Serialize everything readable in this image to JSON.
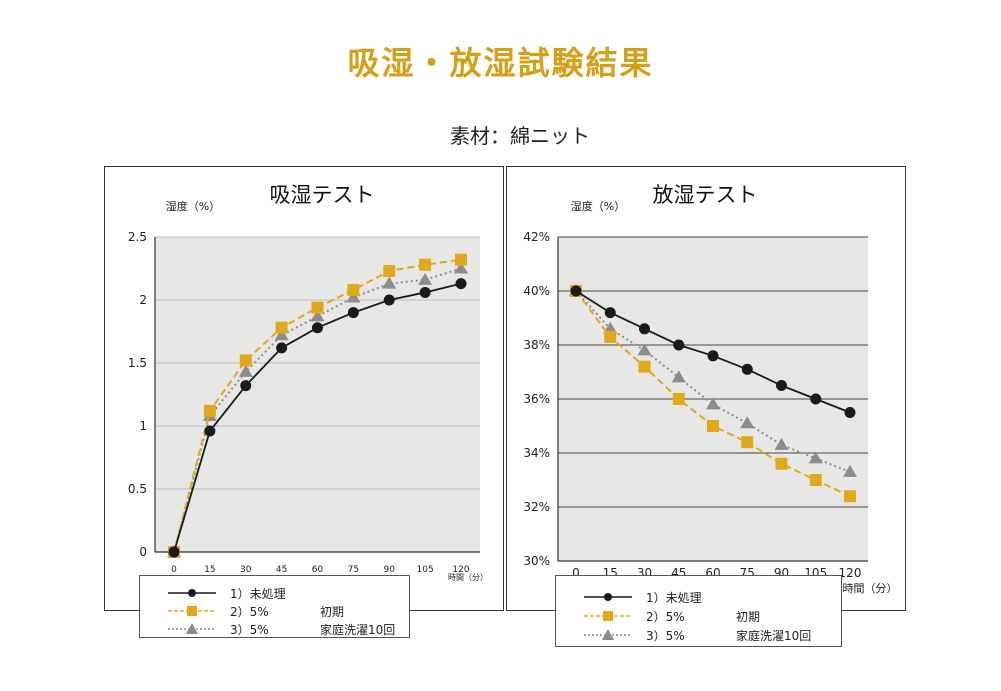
{
  "page_title": "吸湿・放湿試験結果",
  "material_label": "素材：綿ニット",
  "legend": {
    "items": [
      {
        "label": "1）未処理",
        "note": ""
      },
      {
        "label": "2）5%",
        "note": "初期"
      },
      {
        "label": "3）5%",
        "note": "家庭洗濯10回"
      }
    ]
  },
  "colors": {
    "untreated": "#1a1a1a",
    "initial": "#e0a91c",
    "washed": "#8c8c8c",
    "plot_bg": "#e7e8e6",
    "title": "#d4a017"
  },
  "chart_data": [
    {
      "type": "line",
      "title": "吸湿テスト",
      "ylabel": "湿度（%）",
      "xlabel": "時間（分）",
      "x": [
        0,
        15,
        30,
        45,
        60,
        75,
        90,
        105,
        120
      ],
      "x_ticks": [
        "0",
        "15",
        "30",
        "45",
        "60",
        "75",
        "90",
        "105",
        "120"
      ],
      "y_ticks": [
        "0",
        "0.5",
        "1",
        "1.5",
        "2",
        "2.5"
      ],
      "ylim": [
        0,
        2.5
      ],
      "grid": true,
      "series": [
        {
          "name": "1）未処理",
          "values": [
            0,
            0.96,
            1.32,
            1.62,
            1.78,
            1.9,
            2.0,
            2.06,
            2.13
          ]
        },
        {
          "name": "2）5% 初期",
          "values": [
            0,
            1.12,
            1.52,
            1.78,
            1.94,
            2.08,
            2.23,
            2.28,
            2.32
          ]
        },
        {
          "name": "3）5% 家庭洗濯10回",
          "values": [
            0,
            1.08,
            1.43,
            1.72,
            1.87,
            2.02,
            2.13,
            2.16,
            2.25
          ]
        }
      ]
    },
    {
      "type": "line",
      "title": "放湿テスト",
      "ylabel": "湿度（%）",
      "xlabel": "時間（分）",
      "x": [
        0,
        15,
        30,
        45,
        60,
        75,
        90,
        105,
        120
      ],
      "x_ticks": [
        "0",
        "15",
        "30",
        "45",
        "60",
        "75",
        "90",
        "105",
        "120"
      ],
      "y_ticks": [
        "30%",
        "32%",
        "34%",
        "36%",
        "38%",
        "40%",
        "42%"
      ],
      "ylim": [
        30,
        42
      ],
      "grid": true,
      "series": [
        {
          "name": "1）未処理",
          "values": [
            40.0,
            39.2,
            38.6,
            38.0,
            37.6,
            37.1,
            36.5,
            36.0,
            35.5
          ]
        },
        {
          "name": "2）5% 初期",
          "values": [
            40.0,
            38.3,
            37.2,
            36.0,
            35.0,
            34.4,
            33.6,
            33.0,
            32.4
          ]
        },
        {
          "name": "3）5% 家庭洗濯10回",
          "values": [
            40.0,
            38.6,
            37.8,
            36.8,
            35.8,
            35.1,
            34.3,
            33.8,
            33.3
          ]
        }
      ]
    }
  ]
}
